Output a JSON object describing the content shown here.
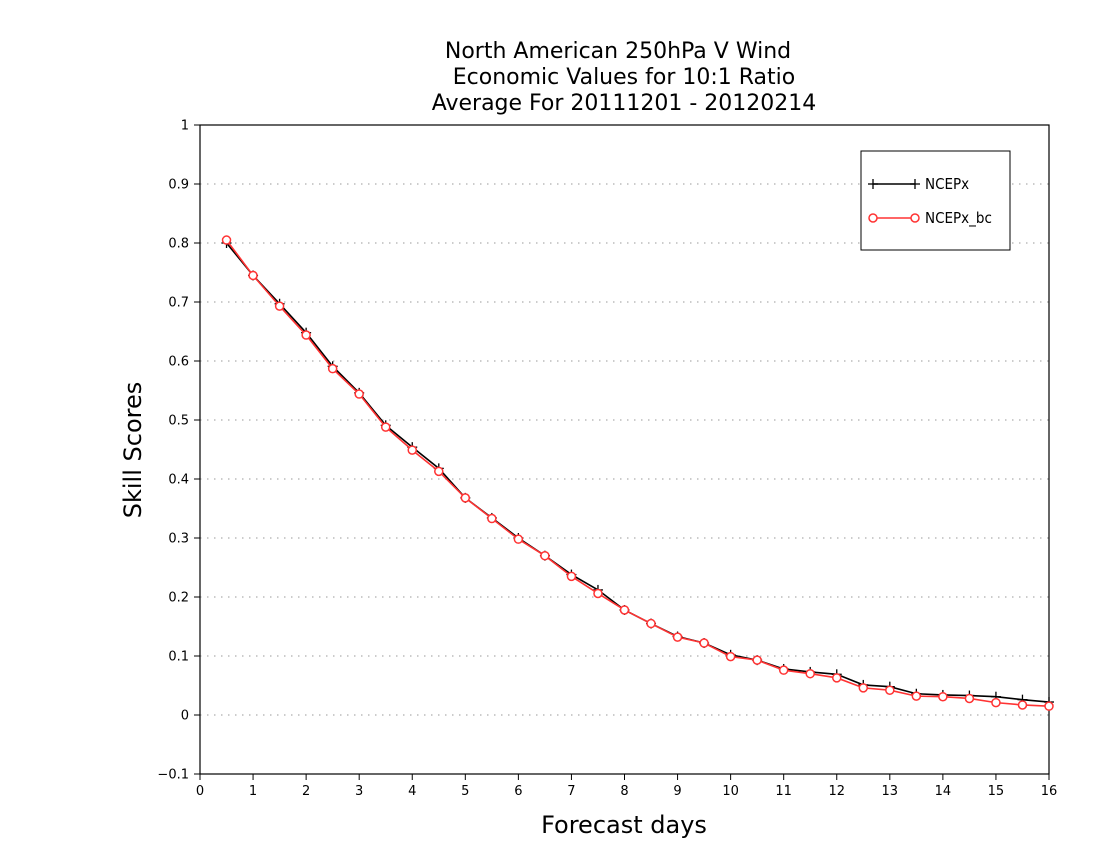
{
  "chart_data": {
    "type": "line",
    "title_lines": [
      "North American 250hPa V Wind",
      "Economic Values for 10:1 Ratio",
      "Average For 20111201 - 20120214"
    ],
    "xlabel": "Forecast days",
    "ylabel": "Skill Scores",
    "xlim": [
      0,
      16
    ],
    "ylim": [
      -0.1,
      1
    ],
    "x_ticks": [
      0,
      1,
      2,
      3,
      4,
      5,
      6,
      7,
      8,
      9,
      10,
      11,
      12,
      13,
      14,
      15,
      16
    ],
    "y_ticks": [
      -0.1,
      0,
      0.1,
      0.2,
      0.3,
      0.4,
      0.5,
      0.6,
      0.7,
      0.8,
      0.9,
      1
    ],
    "y_tick_labels": [
      "−0.1",
      "0",
      "0.1",
      "0.2",
      "0.3",
      "0.4",
      "0.5",
      "0.6",
      "0.7",
      "0.8",
      "0.9",
      "1"
    ],
    "grid": "horizontal dotted",
    "legend_position": "top-right",
    "x": [
      0.5,
      1,
      1.5,
      2,
      2.5,
      3,
      3.5,
      4,
      4.5,
      5,
      5.5,
      6,
      6.5,
      7,
      7.5,
      8,
      8.5,
      9,
      9.5,
      10,
      10.5,
      11,
      11.5,
      12,
      12.5,
      13,
      13.5,
      14,
      14.5,
      15,
      15.5,
      16
    ],
    "series": [
      {
        "name": "NCEPx",
        "color": "#000000",
        "marker": "plus",
        "values": [
          0.8,
          0.745,
          0.697,
          0.648,
          0.591,
          0.546,
          0.491,
          0.454,
          0.418,
          0.368,
          0.334,
          0.3,
          0.27,
          0.238,
          0.212,
          0.178,
          0.155,
          0.133,
          0.122,
          0.102,
          0.093,
          0.078,
          0.073,
          0.069,
          0.051,
          0.048,
          0.036,
          0.034,
          0.033,
          0.031,
          0.026,
          0.022
        ]
      },
      {
        "name": "NCEPx_bc",
        "color": "#ff3333",
        "marker": "circle",
        "values": [
          0.805,
          0.745,
          0.693,
          0.644,
          0.587,
          0.544,
          0.488,
          0.449,
          0.413,
          0.368,
          0.333,
          0.298,
          0.27,
          0.235,
          0.206,
          0.178,
          0.155,
          0.132,
          0.122,
          0.099,
          0.093,
          0.076,
          0.07,
          0.063,
          0.046,
          0.042,
          0.032,
          0.031,
          0.028,
          0.021,
          0.017,
          0.015
        ]
      }
    ]
  }
}
